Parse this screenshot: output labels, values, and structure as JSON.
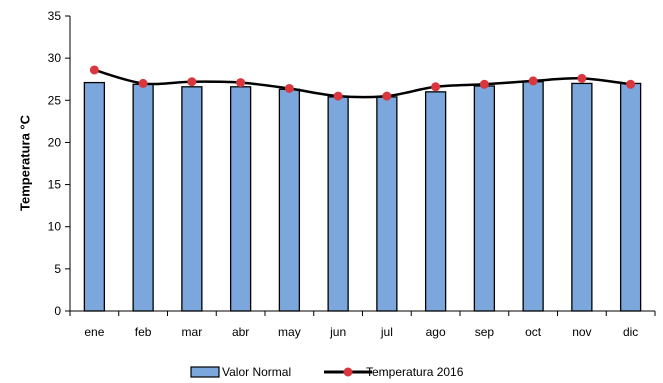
{
  "chart_data": {
    "type": "bar",
    "categories": [
      "ene",
      "feb",
      "mar",
      "abr",
      "may",
      "jun",
      "jul",
      "ago",
      "sep",
      "oct",
      "nov",
      "dic"
    ],
    "series": [
      {
        "name": "Valor Normal",
        "type": "bar",
        "values": [
          27.1,
          26.9,
          26.6,
          26.6,
          26.3,
          25.4,
          25.4,
          26.0,
          26.7,
          27.2,
          27.0,
          27.0
        ],
        "color": "#7BA7DC",
        "border_color": "#000000"
      },
      {
        "name": "Temperatura 2016",
        "type": "line",
        "values": [
          28.6,
          27.0,
          27.2,
          27.1,
          26.4,
          25.5,
          25.5,
          26.6,
          26.9,
          27.3,
          27.6,
          26.9
        ],
        "line_color": "#000000",
        "marker_color": "#D9363E"
      }
    ],
    "ylabel": "Temperatura °C",
    "xlabel": "",
    "ylim": [
      0,
      35
    ],
    "yticks": [
      0,
      5,
      10,
      15,
      20,
      25,
      30,
      35
    ],
    "grid": false,
    "legend_position": "bottom"
  }
}
